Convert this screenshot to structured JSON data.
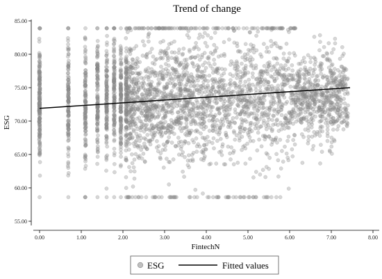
{
  "chart_data": {
    "type": "scatter",
    "title": "Trend of change",
    "xlabel": "FintechN",
    "ylabel": "ESG",
    "xlim": [
      0,
      8
    ],
    "ylim": [
      55,
      85
    ],
    "x_ticks": [
      "0.00",
      "1.00",
      "2.00",
      "3.00",
      "4.00",
      "5.00",
      "6.00",
      "7.00",
      "8.00"
    ],
    "y_ticks": [
      "55.00",
      "60.00",
      "65.00",
      "70.00",
      "75.00",
      "80.00",
      "85.00"
    ],
    "grid": false,
    "legend_position": "bottom",
    "colors": {
      "points": "#8c8c8c",
      "fit_line": "#000000"
    },
    "series": [
      {
        "name": "ESG",
        "kind": "scatter",
        "discrete_columns_x": [
          0,
          0.69,
          1.1,
          1.39,
          1.61,
          1.79,
          1.95,
          2.08
        ],
        "floor_y": 58.6,
        "ceiling_y": 83.9,
        "approx_center_y": 73,
        "approx_x_max": 7.4
      },
      {
        "name": "Fitted values",
        "kind": "line",
        "x": [
          0,
          7.45
        ],
        "y": [
          71.9,
          75.0
        ]
      }
    ]
  }
}
